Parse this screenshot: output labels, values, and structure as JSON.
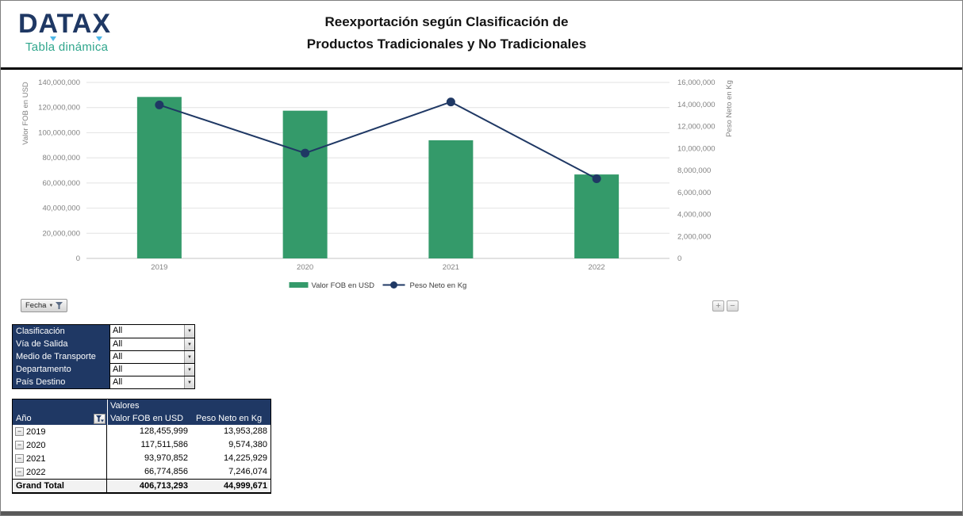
{
  "header": {
    "brand": "DATAX",
    "tagline": "Tabla dinámica",
    "title_line1": "Reexportación según Clasificación de",
    "title_line2": "Productos Tradicionales y No Tradicionales"
  },
  "chart_data": {
    "type": "combo",
    "categories": [
      "2019",
      "2020",
      "2021",
      "2022"
    ],
    "series": [
      {
        "name": "Valor FOB en USD",
        "chart_type": "bar",
        "axis": "left",
        "color": "#349A6A",
        "values": [
          128455999,
          117511586,
          93970852,
          66774856
        ]
      },
      {
        "name": "Peso Neto en Kg",
        "chart_type": "line",
        "axis": "right",
        "color": "#1F3864",
        "values": [
          13953288,
          9574380,
          14225929,
          7246074
        ]
      }
    ],
    "left_axis": {
      "title": "Valor FOB en USD",
      "min": 0,
      "max": 140000000,
      "step": 20000000,
      "tick_labels": [
        "0",
        "20,000,000",
        "40,000,000",
        "60,000,000",
        "80,000,000",
        "100,000,000",
        "120,000,000",
        "140,000,000"
      ]
    },
    "right_axis": {
      "title": "Peso Neto en Kg",
      "min": 0,
      "max": 16000000,
      "step": 2000000,
      "tick_labels": [
        "0",
        "2,000,000",
        "4,000,000",
        "6,000,000",
        "8,000,000",
        "10,000,000",
        "12,000,000",
        "14,000,000",
        "16,000,000"
      ]
    },
    "legend": [
      "Valor FOB en USD",
      "Peso Neto en Kg"
    ],
    "legend_position": "bottom",
    "grid": true
  },
  "chart_buttons": {
    "field_button_label": "Fecha",
    "expand_label": "+",
    "collapse_label": "−"
  },
  "filters": {
    "rows": [
      {
        "label": "Clasificación",
        "value": "All"
      },
      {
        "label": "Vía de Salida",
        "value": "All"
      },
      {
        "label": "Medio de Transporte",
        "value": "All"
      },
      {
        "label": "Departamento",
        "value": "All"
      },
      {
        "label": "País Destino",
        "value": "All"
      }
    ]
  },
  "pivot": {
    "values_group_label": "Valores",
    "corner_label": "Año",
    "col1": "Valor FOB en USD",
    "col2": "Peso Neto en Kg",
    "rows": [
      {
        "year": "2019",
        "fob": "128,455,999",
        "peso": "13,953,288"
      },
      {
        "year": "2020",
        "fob": "117,511,586",
        "peso": "9,574,380"
      },
      {
        "year": "2021",
        "fob": "93,970,852",
        "peso": "14,225,929"
      },
      {
        "year": "2022",
        "fob": "66,774,856",
        "peso": "7,246,074"
      }
    ],
    "grand_total": {
      "label": "Grand Total",
      "fob": "406,713,293",
      "peso": "44,999,671"
    }
  },
  "icons": {
    "dropdown_arrow": "▼",
    "collapse_glyph": "−"
  }
}
